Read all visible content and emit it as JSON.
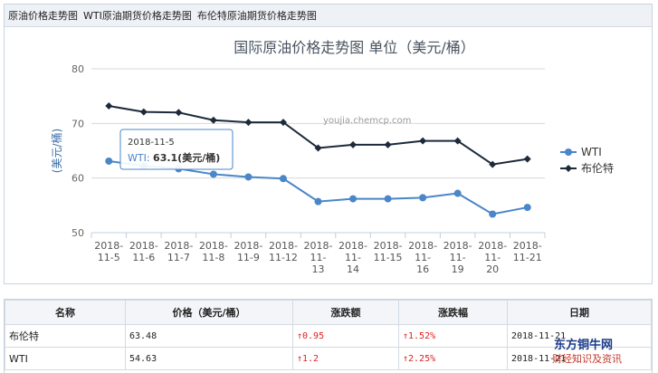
{
  "tabs": [
    "原油价格走势图",
    "WTI原油期货价格走势图",
    "布伦特原油期货价格走势图"
  ],
  "chart_data": {
    "type": "line",
    "title": "国际原油价格走势图 单位（美元/桶）",
    "ylabel": "(美元/桶)",
    "xlabel": "",
    "ylim": [
      50,
      80
    ],
    "yticks": [
      50,
      60,
      70,
      80
    ],
    "categories": [
      "2018-11-5",
      "2018-11-6",
      "2018-11-7",
      "2018-11-8",
      "2018-11-9",
      "2018-11-12",
      "2018-11-13",
      "2018-11-14",
      "2018-11-15",
      "2018-11-16",
      "2018-11-19",
      "2018-11-20",
      "2018-11-21"
    ],
    "x_tick_labels": [
      [
        "2018-",
        "11-5"
      ],
      [
        "2018-",
        "11-6"
      ],
      [
        "2018-",
        "11-7"
      ],
      [
        "2018-",
        "11-8"
      ],
      [
        "2018-",
        "11-9"
      ],
      [
        "2018-",
        "11-12"
      ],
      [
        "2018-",
        "11-",
        "13"
      ],
      [
        "2018-",
        "11-",
        "14"
      ],
      [
        "2018-",
        "11-15"
      ],
      [
        "2018-",
        "11-",
        "16"
      ],
      [
        "2018-",
        "11-",
        "19"
      ],
      [
        "2018-",
        "11-",
        "20"
      ],
      [
        "2018-",
        "11-21"
      ]
    ],
    "series": [
      {
        "name": "WTI",
        "color": "#4a86c8",
        "values": [
          63.1,
          62.2,
          61.7,
          60.7,
          60.2,
          59.9,
          55.7,
          56.2,
          56.2,
          56.4,
          57.2,
          53.4,
          54.63
        ]
      },
      {
        "name": "布伦特",
        "color": "#1c2a3a",
        "values": [
          73.2,
          72.1,
          72.0,
          70.6,
          70.2,
          70.2,
          65.5,
          66.1,
          66.1,
          66.8,
          66.8,
          62.5,
          63.48
        ]
      }
    ],
    "grid": true,
    "legend": "right",
    "watermark": "youjia.chemcp.com",
    "tooltip": {
      "date": "2018-11-5",
      "series": "WTI",
      "value_text": "63.1(美元/桶)"
    }
  },
  "table": {
    "headers": [
      "名称",
      "价格（美元/桶）",
      "涨跌额",
      "涨跌幅",
      "日期"
    ],
    "rows": [
      {
        "name": "布伦特",
        "price": "63.48",
        "change": "↑0.95",
        "pct": "↑1.52%",
        "date": "2018-11-21"
      },
      {
        "name": "WTI",
        "price": "54.63",
        "change": "↑1.2",
        "pct": "↑2.25%",
        "date": "2018-11-21"
      }
    ]
  },
  "brand": {
    "name": "东方铜牛网",
    "slogan": "财经知识及资讯"
  }
}
